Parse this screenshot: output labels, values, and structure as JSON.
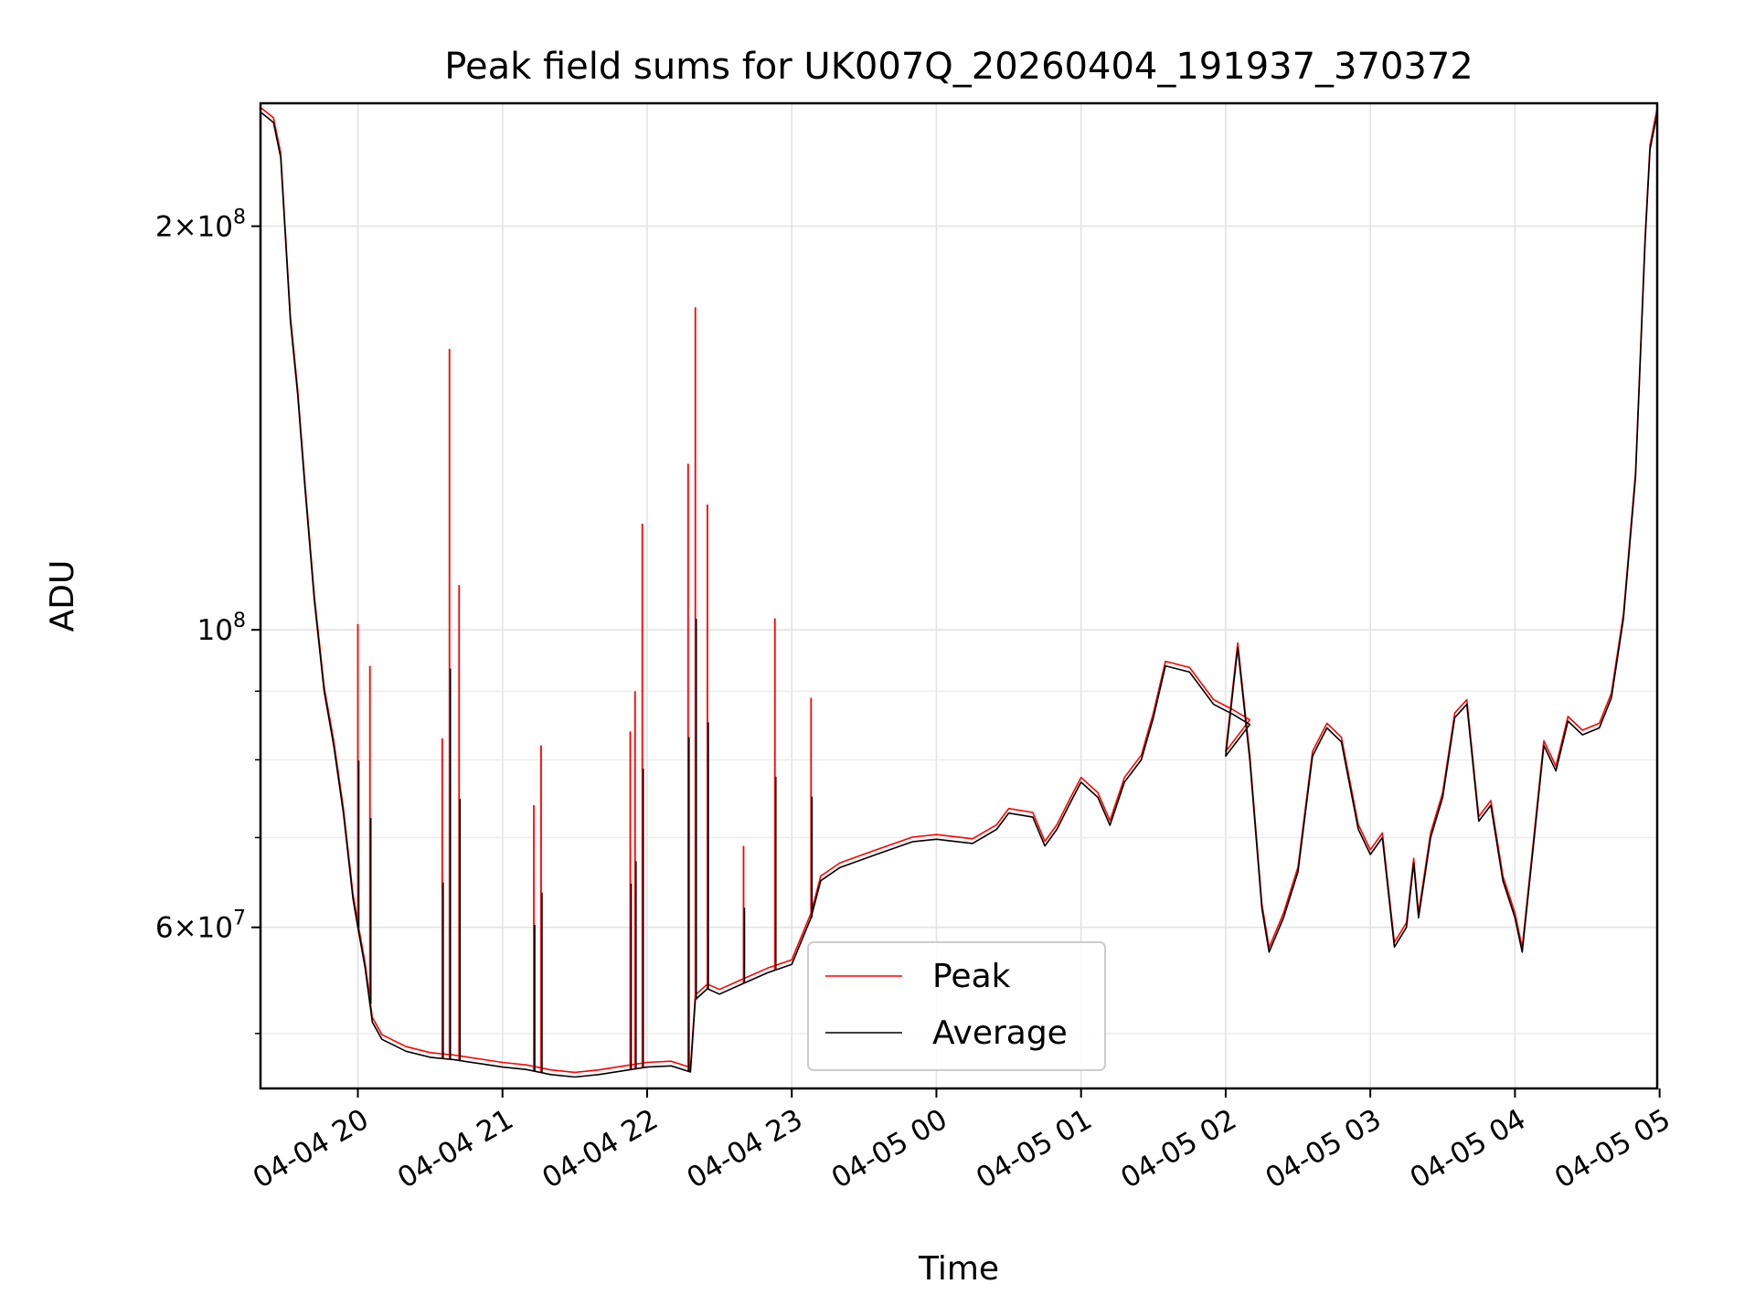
{
  "chart_data": {
    "type": "line",
    "title": "Peak field sums for UK007Q_20260404_191937_370372",
    "xlabel": "Time",
    "ylabel": "ADU",
    "yscale": "log",
    "ylim": [
      45500000,
      247000000
    ],
    "xlim": [
      "2026-04-04 19:19:37",
      "2026-04-05 04:59:00"
    ],
    "grid": true,
    "legend_position": "lower-center",
    "x_ticks": [
      {
        "t": "2026-04-04 20:00",
        "label": "04-04 20"
      },
      {
        "t": "2026-04-04 21:00",
        "label": "04-04 21"
      },
      {
        "t": "2026-04-04 22:00",
        "label": "04-04 22"
      },
      {
        "t": "2026-04-04 23:00",
        "label": "04-04 23"
      },
      {
        "t": "2026-04-05 00:00",
        "label": "04-05 00"
      },
      {
        "t": "2026-04-05 01:00",
        "label": "04-05 01"
      },
      {
        "t": "2026-04-05 02:00",
        "label": "04-05 02"
      },
      {
        "t": "2026-04-05 03:00",
        "label": "04-05 03"
      },
      {
        "t": "2026-04-05 04:00",
        "label": "04-05 04"
      },
      {
        "t": "2026-04-05 05:00",
        "label": "04-05 05"
      }
    ],
    "y_major_ticks": [
      {
        "value": 200000000,
        "mantissa": "2",
        "exp": "8"
      },
      {
        "value": 100000000,
        "mantissa": "",
        "exp": "8"
      },
      {
        "value": 60000000,
        "mantissa": "6",
        "exp": "7"
      }
    ],
    "y_minor_ticks": [
      50000000,
      70000000,
      80000000,
      90000000
    ],
    "series": [
      {
        "name": "Average",
        "color": "#000000",
        "points": [
          [
            "2026-04-04 19:20",
            243000000
          ],
          [
            "2026-04-04 19:25",
            239000000
          ],
          [
            "2026-04-04 19:28",
            225000000
          ],
          [
            "2026-04-04 19:32",
            170000000
          ],
          [
            "2026-04-04 19:35",
            150000000
          ],
          [
            "2026-04-04 19:38",
            128000000
          ],
          [
            "2026-04-04 19:42",
            105000000
          ],
          [
            "2026-04-04 19:46",
            90000000
          ],
          [
            "2026-04-04 19:50",
            82000000
          ],
          [
            "2026-04-04 19:54",
            73000000
          ],
          [
            "2026-04-04 19:58",
            63000000
          ],
          [
            "2026-04-04 20:00",
            60000000
          ],
          [
            "2026-04-04 20:03",
            56000000
          ],
          [
            "2026-04-04 20:06",
            51000000
          ],
          [
            "2026-04-04 20:10",
            49500000
          ],
          [
            "2026-04-04 20:15",
            49000000
          ],
          [
            "2026-04-04 20:20",
            48500000
          ],
          [
            "2026-04-04 20:30",
            48000000
          ],
          [
            "2026-04-04 20:40",
            47800000
          ],
          [
            "2026-04-04 20:50",
            47500000
          ],
          [
            "2026-04-04 21:00",
            47200000
          ],
          [
            "2026-04-04 21:10",
            47000000
          ],
          [
            "2026-04-04 21:20",
            46600000
          ],
          [
            "2026-04-04 21:30",
            46400000
          ],
          [
            "2026-04-04 21:40",
            46600000
          ],
          [
            "2026-04-04 21:50",
            46900000
          ],
          [
            "2026-04-04 22:00",
            47200000
          ],
          [
            "2026-04-04 22:10",
            47300000
          ],
          [
            "2026-04-04 22:18",
            46800000
          ],
          [
            "2026-04-04 22:20",
            53000000
          ],
          [
            "2026-04-04 22:25",
            54000000
          ],
          [
            "2026-04-04 22:30",
            53500000
          ],
          [
            "2026-04-04 22:40",
            54500000
          ],
          [
            "2026-04-04 22:50",
            55500000
          ],
          [
            "2026-04-04 23:00",
            56300000
          ],
          [
            "2026-04-04 23:08",
            61000000
          ],
          [
            "2026-04-04 23:12",
            65000000
          ],
          [
            "2026-04-04 23:20",
            66500000
          ],
          [
            "2026-04-04 23:35",
            68000000
          ],
          [
            "2026-04-04 23:50",
            69500000
          ],
          [
            "2026-04-05 00:00",
            69800000
          ],
          [
            "2026-04-05 00:15",
            69300000
          ],
          [
            "2026-04-05 00:25",
            71000000
          ],
          [
            "2026-04-05 00:30",
            73000000
          ],
          [
            "2026-04-05 00:40",
            72500000
          ],
          [
            "2026-04-05 00:45",
            69000000
          ],
          [
            "2026-04-05 00:50",
            71000000
          ],
          [
            "2026-04-05 00:55",
            74000000
          ],
          [
            "2026-04-05 01:00",
            77000000
          ],
          [
            "2026-04-05 01:07",
            75000000
          ],
          [
            "2026-04-05 01:12",
            71500000
          ],
          [
            "2026-04-05 01:18",
            77000000
          ],
          [
            "2026-04-05 01:25",
            80000000
          ],
          [
            "2026-04-05 01:30",
            86000000
          ],
          [
            "2026-04-05 01:35",
            94000000
          ],
          [
            "2026-04-05 01:45",
            93000000
          ],
          [
            "2026-04-05 01:55",
            88000000
          ],
          [
            "2026-04-05 01:63",
            86500000
          ],
          [
            "2026-04-05 01:70",
            85000000
          ],
          [
            "2026-04-05 02:00",
            80500000
          ],
          [
            "2026-04-05 02:05",
            97000000
          ],
          [
            "2026-04-05 02:10",
            80000000
          ],
          [
            "2026-04-05 02:15",
            62000000
          ],
          [
            "2026-04-05 02:18",
            57500000
          ],
          [
            "2026-04-05 02:24",
            61000000
          ],
          [
            "2026-04-05 02:30",
            66000000
          ],
          [
            "2026-04-05 02:36",
            80500000
          ],
          [
            "2026-04-05 02:42",
            84500000
          ],
          [
            "2026-04-05 02:48",
            82500000
          ],
          [
            "2026-04-05 02:55",
            71000000
          ],
          [
            "2026-04-05 03:00",
            68000000
          ],
          [
            "2026-04-05 03:05",
            70000000
          ],
          [
            "2026-04-05 03:10",
            58000000
          ],
          [
            "2026-04-05 03:15",
            60000000
          ],
          [
            "2026-04-05 03:18",
            67000000
          ],
          [
            "2026-04-05 03:20",
            61000000
          ],
          [
            "2026-04-05 03:25",
            70000000
          ],
          [
            "2026-04-05 03:30",
            75000000
          ],
          [
            "2026-04-05 03:35",
            86000000
          ],
          [
            "2026-04-05 03:40",
            88000000
          ],
          [
            "2026-04-05 03:45",
            72000000
          ],
          [
            "2026-04-05 03:50",
            74000000
          ],
          [
            "2026-04-05 03:55",
            65000000
          ],
          [
            "2026-04-05 04:00",
            61000000
          ],
          [
            "2026-04-05 04:03",
            57500000
          ],
          [
            "2026-04-05 04:08",
            70000000
          ],
          [
            "2026-04-05 04:12",
            82000000
          ],
          [
            "2026-04-05 04:17",
            78500000
          ],
          [
            "2026-04-05 04:22",
            85500000
          ],
          [
            "2026-04-05 04:28",
            83500000
          ],
          [
            "2026-04-05 04:35",
            84500000
          ],
          [
            "2026-04-05 04:40",
            89000000
          ],
          [
            "2026-04-05 04:45",
            102000000
          ],
          [
            "2026-04-05 04:50",
            130000000
          ],
          [
            "2026-04-05 04:54",
            195000000
          ],
          [
            "2026-04-05 04:56",
            228000000
          ],
          [
            "2026-04-05 04:59",
            243000000
          ]
        ]
      },
      {
        "name": "Peak",
        "color": "#ff0000",
        "spikes": [
          [
            "2026-04-04 20:00",
            101000000
          ],
          [
            "2026-04-04 20:05",
            94000000
          ],
          [
            "2026-04-04 20:35",
            83000000
          ],
          [
            "2026-04-04 20:38",
            162000000
          ],
          [
            "2026-04-04 20:42",
            108000000
          ],
          [
            "2026-04-04 21:13",
            74000000
          ],
          [
            "2026-04-04 21:16",
            82000000
          ],
          [
            "2026-04-04 21:53",
            84000000
          ],
          [
            "2026-04-04 21:55",
            90000000
          ],
          [
            "2026-04-04 21:58",
            120000000
          ],
          [
            "2026-04-04 22:17",
            133000000
          ],
          [
            "2026-04-04 22:20",
            174000000
          ],
          [
            "2026-04-04 22:25",
            124000000
          ],
          [
            "2026-04-04 22:40",
            69000000
          ],
          [
            "2026-04-04 22:53",
            102000000
          ],
          [
            "2026-04-04 23:08",
            89000000
          ]
        ]
      }
    ]
  }
}
